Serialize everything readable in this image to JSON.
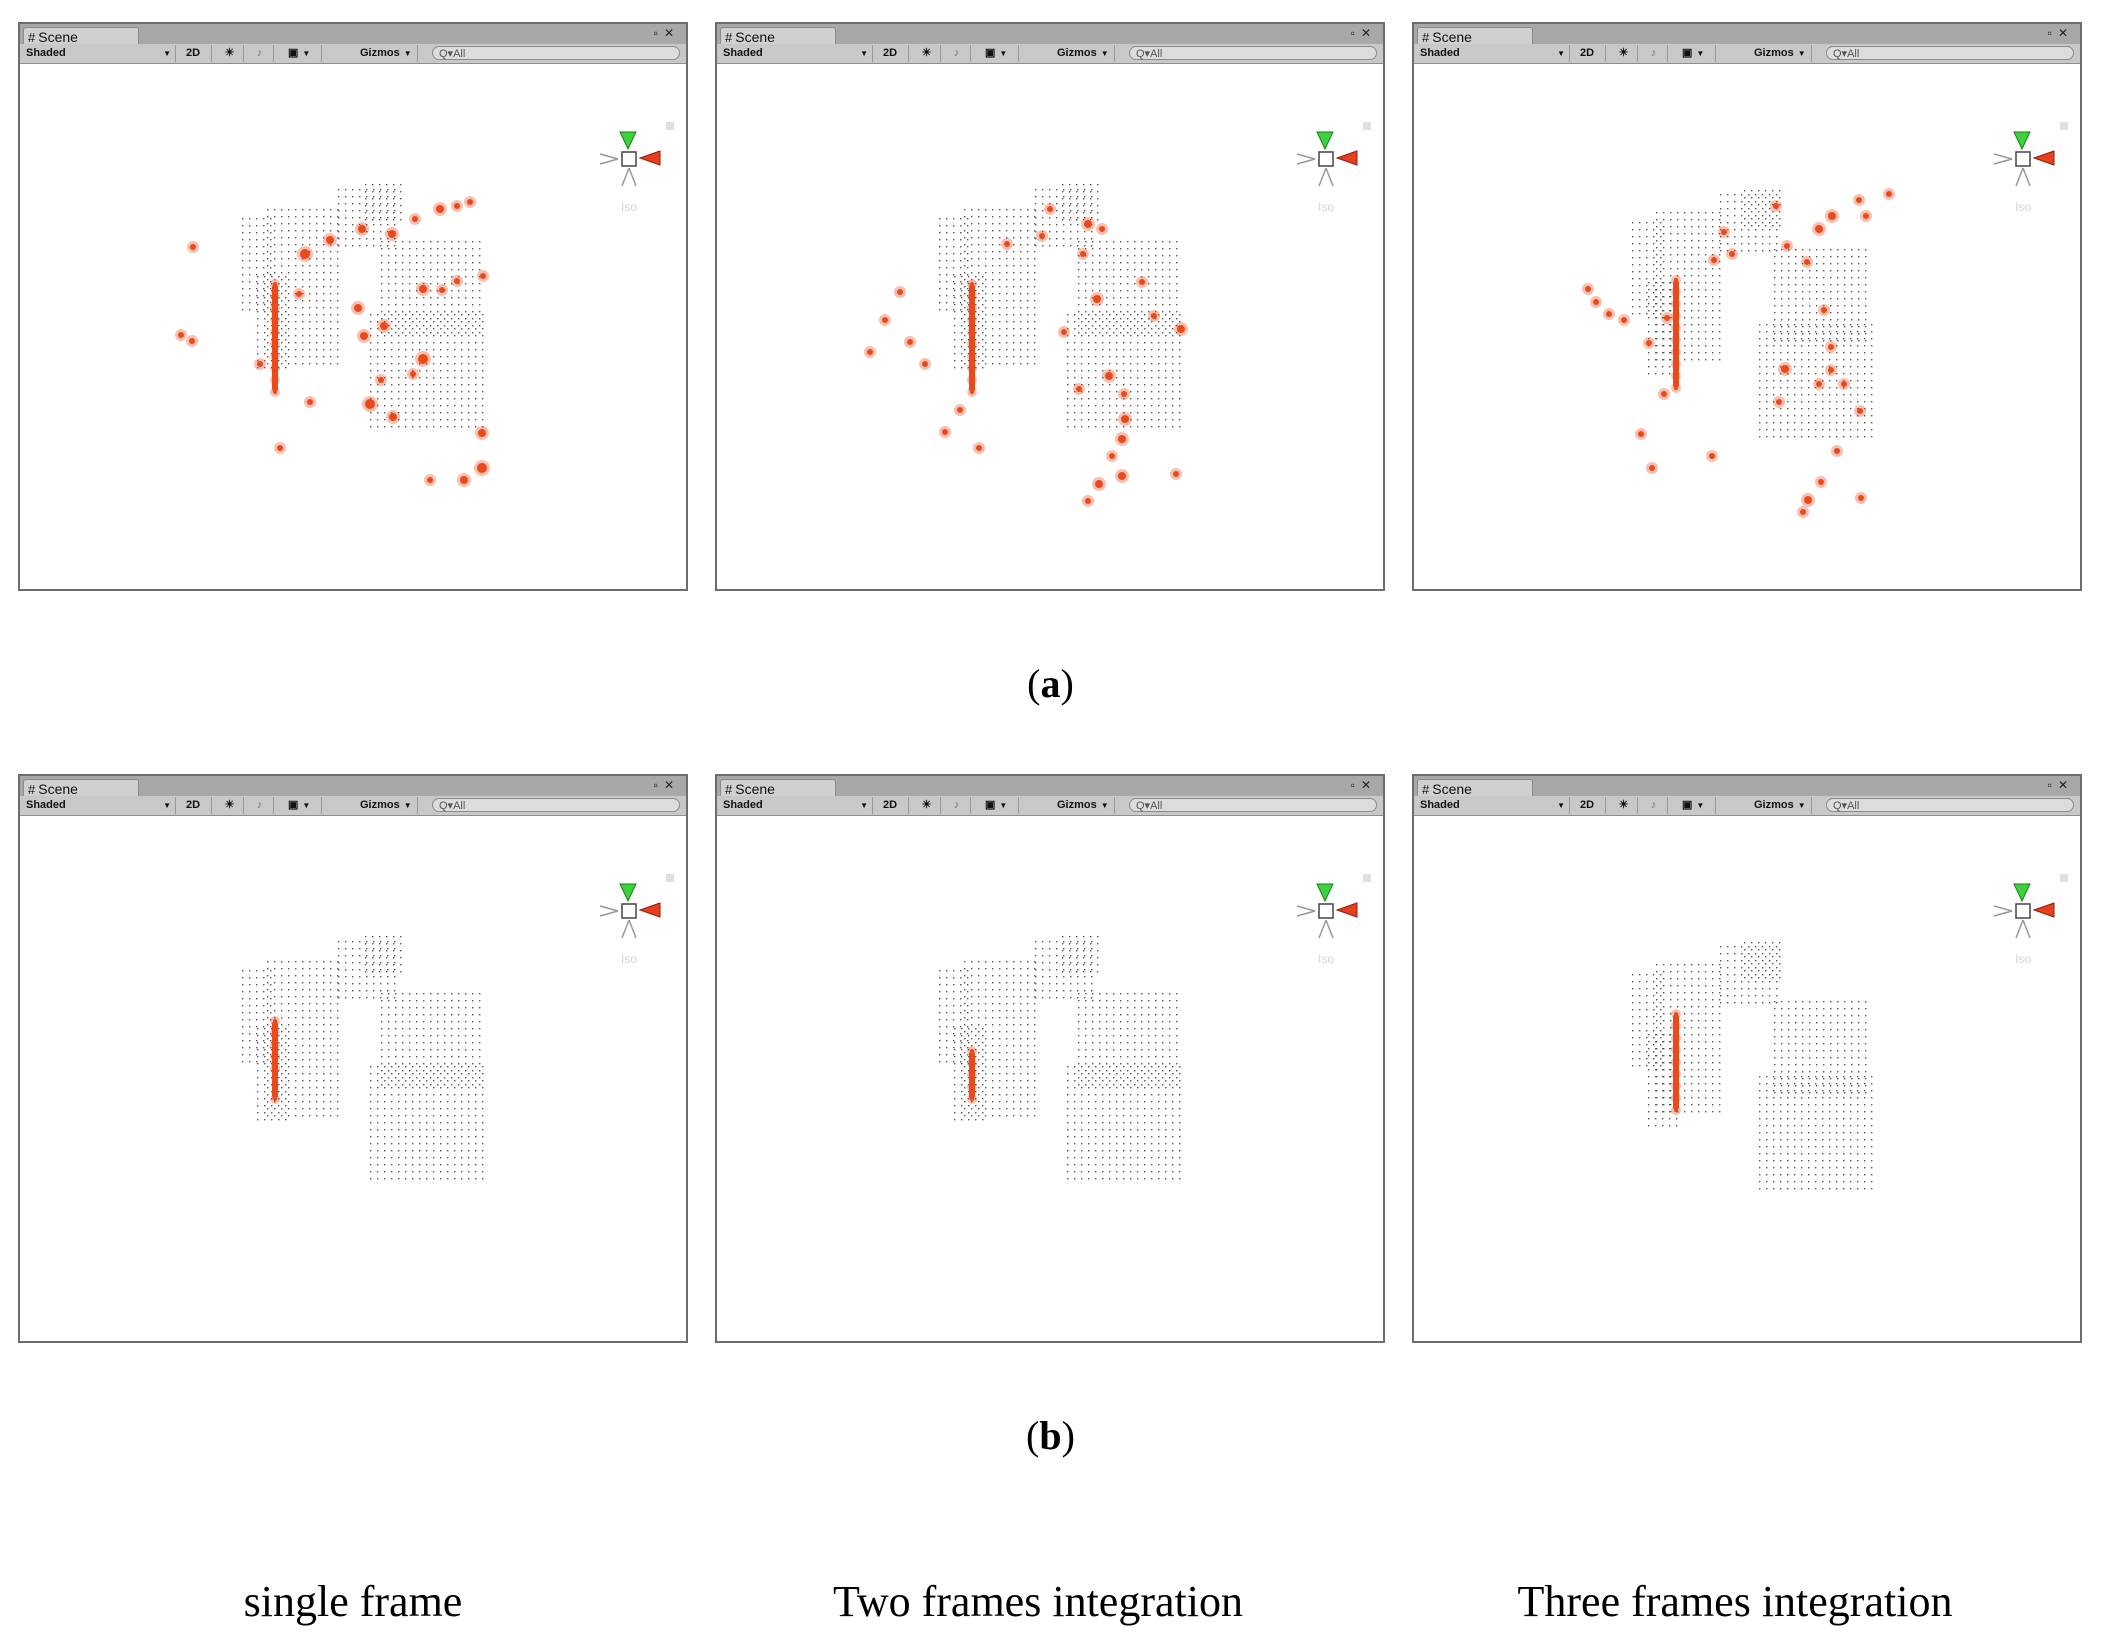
{
  "window": {
    "tab_label": "Scene",
    "tab_icon": "grid-hash-icon",
    "shading_mode": "Shaded",
    "mode_2d": "2D",
    "gizmos": "Gizmos",
    "search_placeholder": "All",
    "view_label": "Iso"
  },
  "rows": [
    {
      "label_open": "(",
      "label_letter": "a",
      "label_close": ")"
    },
    {
      "label_open": "(",
      "label_letter": "b",
      "label_close": ")"
    }
  ],
  "columns": [
    {
      "caption": "single frame"
    },
    {
      "caption": "Two frames integration"
    },
    {
      "caption": "Three frames integration"
    }
  ],
  "colors": {
    "highlight": "#e84a1c",
    "gizmo_y": "#3bd23b",
    "gizmo_x": "#e8401c",
    "points": "#555555"
  }
}
